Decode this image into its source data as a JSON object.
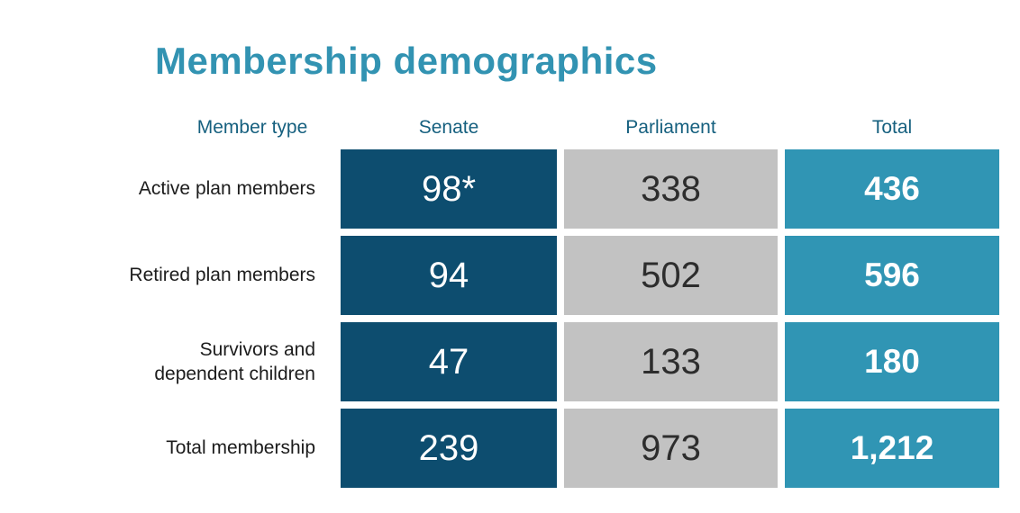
{
  "title": "Membership demographics",
  "colors": {
    "title_text": "#3293b2",
    "header_text": "#16607f",
    "label_text": "#1c1c1c",
    "senate_cell_bg": "#0d4d6f",
    "parliament_cell_bg": "#c2c2c2",
    "total_cell_bg": "#3095b4",
    "light_value_text": "#ffffff",
    "dark_value_text": "#2d2d2d",
    "page_bg": "#ffffff"
  },
  "chart_data": {
    "type": "table",
    "title": "Membership demographics",
    "columns": [
      "Member type",
      "Senate",
      "Parliament",
      "Total"
    ],
    "rows": [
      {
        "label": "Active plan members",
        "values": [
          "98*",
          "338",
          "436"
        ]
      },
      {
        "label": "Retired plan members",
        "values": [
          "94",
          "502",
          "596"
        ]
      },
      {
        "label": "Survivors and\ndependent children",
        "values": [
          "47",
          "133",
          "180"
        ]
      },
      {
        "label": "Total membership",
        "values": [
          "239",
          "973",
          "1,212"
        ]
      }
    ]
  }
}
